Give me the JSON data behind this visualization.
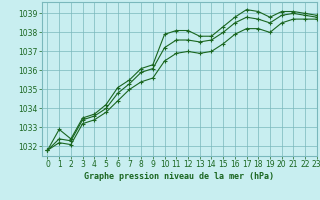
{
  "title": "Graphe pression niveau de la mer (hPa)",
  "background_color": "#c8eef0",
  "grid_color": "#7ab8bc",
  "line_color": "#1a6620",
  "marker_color": "#1a6620",
  "xlim": [
    -0.5,
    23
  ],
  "ylim": [
    1031.5,
    1039.6
  ],
  "yticks": [
    1032,
    1033,
    1034,
    1035,
    1036,
    1037,
    1038,
    1039
  ],
  "xticks": [
    0,
    1,
    2,
    3,
    4,
    5,
    6,
    7,
    8,
    9,
    10,
    11,
    12,
    13,
    14,
    15,
    16,
    17,
    18,
    19,
    20,
    21,
    22,
    23
  ],
  "series": [
    [
      1031.8,
      1032.9,
      1032.4,
      1033.5,
      1033.7,
      1034.2,
      1035.1,
      1035.5,
      1036.1,
      1036.3,
      1037.9,
      1038.1,
      1038.1,
      1037.8,
      1037.8,
      1038.3,
      1038.8,
      1039.2,
      1039.1,
      1038.8,
      1039.1,
      1039.1,
      1039.0,
      1038.9
    ],
    [
      1031.8,
      1032.4,
      1032.3,
      1033.4,
      1033.6,
      1034.0,
      1034.8,
      1035.3,
      1035.9,
      1036.1,
      1037.2,
      1037.6,
      1037.6,
      1037.5,
      1037.6,
      1038.0,
      1038.5,
      1038.8,
      1038.7,
      1038.5,
      1038.9,
      1039.0,
      1038.9,
      1038.8
    ],
    [
      1031.8,
      1032.2,
      1032.1,
      1033.2,
      1033.4,
      1033.8,
      1034.4,
      1035.0,
      1035.4,
      1035.6,
      1036.5,
      1036.9,
      1037.0,
      1036.9,
      1037.0,
      1037.4,
      1037.9,
      1038.2,
      1038.2,
      1038.0,
      1038.5,
      1038.7,
      1038.7,
      1038.7
    ]
  ],
  "title_fontsize": 6.0,
  "tick_fontsize": 5.5
}
